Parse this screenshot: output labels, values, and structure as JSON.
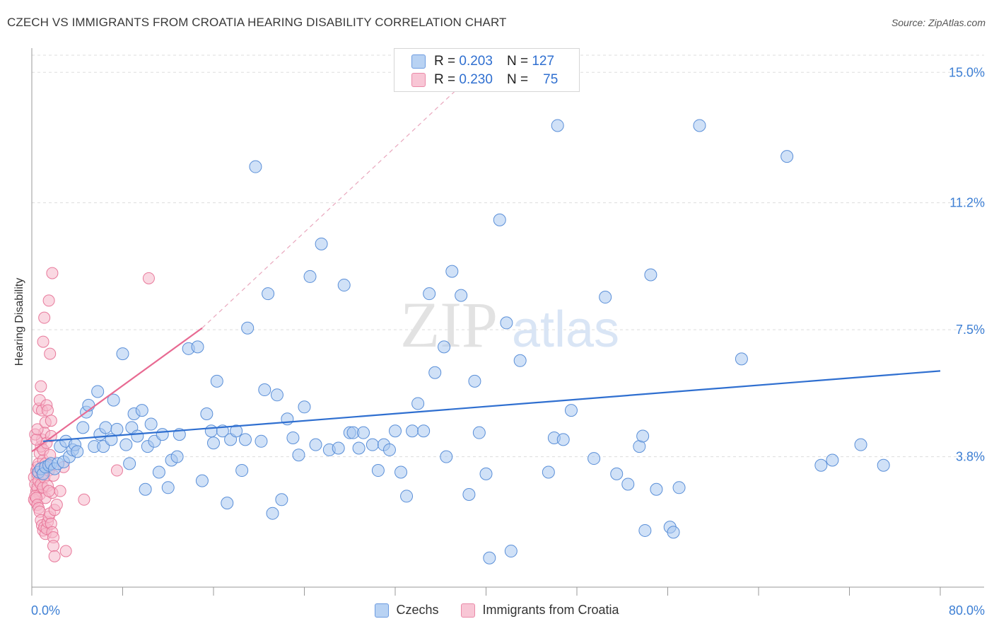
{
  "header": {
    "title": "CZECH VS IMMIGRANTS FROM CROATIA HEARING DISABILITY CORRELATION CHART",
    "source": "Source: ZipAtlas.com"
  },
  "legend_top": {
    "rows": [
      {
        "r_label": "R =",
        "r_value": "0.203",
        "n_label": "N =",
        "n_value": "127"
      },
      {
        "r_label": "R =",
        "r_value": "0.230",
        "n_label": "N =",
        "n_value": "75"
      }
    ]
  },
  "legend_bottom": {
    "items": [
      {
        "label": "Czechs"
      },
      {
        "label": "Immigrants from Croatia"
      }
    ]
  },
  "watermark": {
    "part1": "ZIP",
    "part2": "atlas"
  },
  "colors": {
    "czech_fill": "#a9c8f0",
    "czech_stroke": "#5a8fd8",
    "czech_line": "#2f6fd0",
    "croatia_fill": "#f6b8ca",
    "croatia_stroke": "#e8799b",
    "croatia_line": "#e86a92",
    "grid": "#dddddd",
    "tick_label": "#3d7fd4"
  },
  "chart_data": {
    "type": "scatter",
    "title": "CZECH VS IMMIGRANTS FROM CROATIA HEARING DISABILITY CORRELATION CHART",
    "ylabel": "Hearing Disability",
    "xlabel": "",
    "xlim": [
      0,
      80
    ],
    "ylim": [
      0,
      15.5
    ],
    "x_tick_labels": [
      "0.0%",
      "80.0%"
    ],
    "y_ticks": [
      3.8,
      7.5,
      11.2,
      15.0
    ],
    "y_tick_labels": [
      "3.8%",
      "7.5%",
      "11.2%",
      "15.0%"
    ],
    "grid": "horizontal dashed",
    "series": [
      {
        "name": "Czechs",
        "R": 0.203,
        "N": 127,
        "trend": {
          "x0": 1.0,
          "y0": 4.25,
          "x1": 80.0,
          "y1": 6.3
        },
        "points": [
          [
            0.6,
            3.35
          ],
          [
            0.8,
            3.45
          ],
          [
            1.0,
            3.3
          ],
          [
            1.2,
            3.5
          ],
          [
            1.5,
            3.55
          ],
          [
            1.7,
            3.6
          ],
          [
            2.0,
            3.45
          ],
          [
            2.3,
            3.6
          ],
          [
            2.5,
            4.1
          ],
          [
            2.8,
            3.65
          ],
          [
            3.0,
            4.25
          ],
          [
            3.3,
            3.8
          ],
          [
            3.6,
            4.0
          ],
          [
            3.8,
            4.15
          ],
          [
            4.0,
            3.95
          ],
          [
            4.5,
            4.65
          ],
          [
            4.8,
            5.1
          ],
          [
            5.0,
            5.3
          ],
          [
            5.5,
            4.1
          ],
          [
            5.8,
            5.7
          ],
          [
            6.0,
            4.45
          ],
          [
            6.3,
            4.1
          ],
          [
            6.5,
            4.65
          ],
          [
            7.0,
            4.3
          ],
          [
            7.2,
            5.45
          ],
          [
            7.5,
            4.6
          ],
          [
            8.0,
            6.8
          ],
          [
            8.3,
            4.15
          ],
          [
            8.6,
            3.6
          ],
          [
            8.8,
            4.65
          ],
          [
            9.0,
            5.05
          ],
          [
            9.3,
            4.4
          ],
          [
            9.7,
            5.15
          ],
          [
            10.0,
            2.85
          ],
          [
            10.2,
            4.1
          ],
          [
            10.5,
            4.75
          ],
          [
            10.8,
            4.25
          ],
          [
            11.2,
            3.35
          ],
          [
            11.5,
            4.45
          ],
          [
            12.0,
            2.9
          ],
          [
            12.3,
            3.7
          ],
          [
            12.8,
            3.8
          ],
          [
            13.0,
            4.45
          ],
          [
            13.8,
            6.95
          ],
          [
            14.6,
            7.0
          ],
          [
            15.0,
            3.1
          ],
          [
            15.4,
            5.05
          ],
          [
            15.8,
            4.55
          ],
          [
            16.0,
            4.2
          ],
          [
            16.3,
            6.0
          ],
          [
            16.8,
            4.55
          ],
          [
            17.2,
            2.45
          ],
          [
            17.5,
            4.3
          ],
          [
            18.0,
            4.55
          ],
          [
            18.5,
            3.4
          ],
          [
            18.8,
            4.3
          ],
          [
            19.0,
            7.55
          ],
          [
            19.7,
            12.25
          ],
          [
            20.2,
            4.25
          ],
          [
            20.5,
            5.75
          ],
          [
            20.8,
            8.55
          ],
          [
            21.2,
            2.15
          ],
          [
            21.6,
            5.6
          ],
          [
            22.0,
            2.55
          ],
          [
            22.5,
            4.9
          ],
          [
            23.0,
            4.35
          ],
          [
            23.5,
            3.85
          ],
          [
            24.0,
            5.25
          ],
          [
            24.5,
            9.05
          ],
          [
            25.0,
            4.15
          ],
          [
            25.5,
            10.0
          ],
          [
            26.2,
            4.0
          ],
          [
            27.0,
            4.05
          ],
          [
            27.5,
            8.8
          ],
          [
            28.0,
            4.5
          ],
          [
            28.3,
            4.5
          ],
          [
            28.8,
            4.05
          ],
          [
            29.2,
            4.5
          ],
          [
            30.0,
            4.15
          ],
          [
            30.5,
            3.4
          ],
          [
            31.0,
            4.15
          ],
          [
            31.5,
            4.0
          ],
          [
            32.0,
            4.55
          ],
          [
            32.5,
            3.35
          ],
          [
            33.0,
            2.65
          ],
          [
            33.5,
            4.55
          ],
          [
            34.0,
            5.35
          ],
          [
            34.5,
            4.55
          ],
          [
            35.0,
            8.55
          ],
          [
            35.5,
            6.25
          ],
          [
            36.3,
            7.0
          ],
          [
            36.5,
            3.8
          ],
          [
            37.0,
            9.2
          ],
          [
            37.8,
            8.5
          ],
          [
            38.5,
            2.7
          ],
          [
            39.0,
            6.0
          ],
          [
            39.4,
            4.5
          ],
          [
            40.0,
            3.3
          ],
          [
            40.3,
            0.85
          ],
          [
            41.2,
            10.7
          ],
          [
            41.8,
            7.7
          ],
          [
            42.2,
            1.05
          ],
          [
            43.0,
            6.6
          ],
          [
            45.5,
            3.35
          ],
          [
            46.0,
            4.35
          ],
          [
            46.3,
            13.45
          ],
          [
            46.8,
            4.3
          ],
          [
            47.5,
            5.15
          ],
          [
            49.5,
            3.75
          ],
          [
            50.5,
            8.45
          ],
          [
            51.5,
            3.3
          ],
          [
            52.5,
            3.0
          ],
          [
            53.5,
            4.1
          ],
          [
            53.8,
            4.4
          ],
          [
            54.0,
            1.65
          ],
          [
            54.5,
            9.1
          ],
          [
            55.0,
            2.85
          ],
          [
            56.2,
            1.75
          ],
          [
            56.5,
            1.6
          ],
          [
            57.0,
            2.9
          ],
          [
            58.8,
            13.45
          ],
          [
            62.5,
            6.65
          ],
          [
            66.5,
            12.55
          ],
          [
            69.5,
            3.55
          ],
          [
            70.5,
            3.7
          ],
          [
            73.0,
            4.15
          ],
          [
            75.0,
            3.55
          ]
        ]
      },
      {
        "name": "Immigrants from Croatia",
        "R": 0.23,
        "N": 75,
        "trend": {
          "x0": 0.0,
          "y0": 3.95,
          "x1": 15.0,
          "y1": 7.55
        },
        "trend_extension": {
          "x0": 15.0,
          "y0": 7.55,
          "x1": 40.0,
          "y1": 15.3
        },
        "points": [
          [
            0.2,
            3.2
          ],
          [
            0.3,
            2.5
          ],
          [
            0.3,
            3.0
          ],
          [
            0.4,
            2.8
          ],
          [
            0.4,
            3.4
          ],
          [
            0.5,
            3.3
          ],
          [
            0.5,
            2.9
          ],
          [
            0.5,
            3.5
          ],
          [
            0.6,
            3.1
          ],
          [
            0.6,
            3.6
          ],
          [
            0.7,
            2.7
          ],
          [
            0.7,
            3.9
          ],
          [
            0.8,
            3.0
          ],
          [
            0.8,
            4.1
          ],
          [
            0.9,
            3.3
          ],
          [
            0.9,
            4.3
          ],
          [
            1.0,
            2.9
          ],
          [
            1.0,
            3.7
          ],
          [
            1.0,
            4.0
          ],
          [
            1.1,
            3.2
          ],
          [
            1.1,
            4.5
          ],
          [
            1.2,
            2.6
          ],
          [
            1.2,
            3.6
          ],
          [
            1.3,
            4.2
          ],
          [
            1.4,
            2.95
          ],
          [
            1.5,
            3.4
          ],
          [
            1.6,
            3.85
          ],
          [
            1.7,
            4.4
          ],
          [
            1.8,
            2.75
          ],
          [
            1.9,
            3.25
          ],
          [
            0.2,
            2.55
          ],
          [
            0.3,
            2.65
          ],
          [
            0.4,
            2.6
          ],
          [
            0.5,
            2.4
          ],
          [
            0.6,
            2.3
          ],
          [
            0.7,
            2.2
          ],
          [
            0.8,
            1.95
          ],
          [
            0.9,
            1.8
          ],
          [
            1.0,
            1.65
          ],
          [
            1.1,
            1.75
          ],
          [
            1.2,
            1.55
          ],
          [
            1.3,
            1.7
          ],
          [
            1.4,
            1.9
          ],
          [
            1.5,
            2.05
          ],
          [
            1.6,
            2.15
          ],
          [
            1.7,
            1.85
          ],
          [
            1.8,
            1.6
          ],
          [
            1.9,
            1.45
          ],
          [
            2.0,
            2.25
          ],
          [
            2.2,
            2.4
          ],
          [
            2.5,
            2.8
          ],
          [
            0.3,
            4.45
          ],
          [
            0.4,
            4.3
          ],
          [
            0.5,
            4.6
          ],
          [
            0.6,
            5.2
          ],
          [
            0.7,
            5.45
          ],
          [
            0.8,
            5.85
          ],
          [
            0.9,
            5.15
          ],
          [
            1.0,
            7.15
          ],
          [
            1.1,
            7.85
          ],
          [
            1.2,
            4.8
          ],
          [
            1.3,
            5.3
          ],
          [
            1.4,
            5.15
          ],
          [
            1.5,
            8.35
          ],
          [
            1.6,
            6.8
          ],
          [
            1.7,
            4.85
          ],
          [
            1.8,
            9.15
          ],
          [
            1.9,
            1.2
          ],
          [
            2.0,
            0.9
          ],
          [
            3.0,
            1.05
          ],
          [
            4.6,
            2.55
          ],
          [
            7.5,
            3.4
          ],
          [
            10.3,
            9.0
          ],
          [
            2.8,
            3.5
          ],
          [
            1.5,
            2.8
          ]
        ]
      }
    ]
  }
}
